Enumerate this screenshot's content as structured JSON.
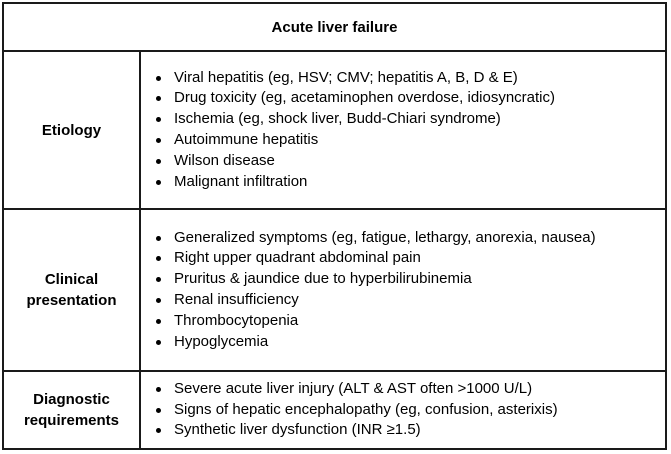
{
  "title": "Acute liver failure",
  "rows": [
    {
      "label_lines": [
        "Etiology"
      ],
      "items": [
        "Viral hepatitis (eg, HSV; CMV; hepatitis A, B, D & E)",
        "Drug toxicity (eg, acetaminophen overdose, idiosyncratic)",
        "Ischemia (eg, shock liver, Budd-Chiari syndrome)",
        "Autoimmune hepatitis",
        "Wilson disease",
        "Malignant infiltration"
      ]
    },
    {
      "label_lines": [
        "Clinical",
        "presentation"
      ],
      "items": [
        "Generalized symptoms (eg, fatigue, lethargy, anorexia, nausea)",
        "Right upper quadrant abdominal pain",
        "Pruritus & jaundice due to hyperbilirubinemia",
        "Renal insufficiency",
        "Thrombocytopenia",
        "Hypoglycemia"
      ]
    },
    {
      "label_lines": [
        "Diagnostic",
        "requirements"
      ],
      "items": [
        "Severe acute liver injury (ALT & AST often >1000 U/L)",
        "Signs of hepatic encephalopathy (eg, confusion, asterixis)",
        "Synthetic liver dysfunction (INR ≥1.5)"
      ]
    }
  ]
}
